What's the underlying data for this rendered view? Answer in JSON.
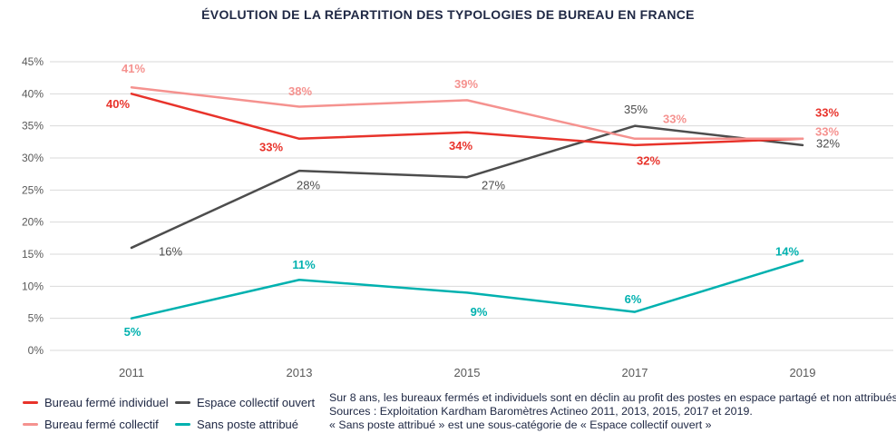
{
  "chart_data": {
    "type": "line",
    "title": "ÉVOLUTION DE LA RÉPARTTITION DES TYPOLOGIES DE BUREAU EN FRANCE",
    "categories": [
      "2011",
      "2013",
      "2015",
      "2017",
      "2019"
    ],
    "y_axis": {
      "min": 0,
      "max": 45,
      "step": 5,
      "tick_suffix": "%"
    },
    "grid": true,
    "legend_position": "bottom-left",
    "series": [
      {
        "name": "Bureau fermé individuel",
        "color": "#e8332b",
        "bold_labels": true,
        "values": [
          40,
          33,
          34,
          32,
          33
        ],
        "label_offsets": [
          [
            -15,
            11
          ],
          [
            -31,
            9
          ],
          [
            -7,
            15
          ],
          [
            15,
            17
          ],
          [
            27,
            -29
          ]
        ]
      },
      {
        "name": "Bureau fermé collectif",
        "color": "#f5928f",
        "bold_labels": true,
        "values": [
          41,
          38,
          39,
          33,
          33
        ],
        "label_offsets": [
          [
            2,
            -21
          ],
          [
            1,
            -17
          ],
          [
            -1,
            -18
          ],
          [
            44,
            -22
          ],
          [
            27,
            -8
          ]
        ]
      },
      {
        "name": "Espace collectif ouvert",
        "color": "#4d4d4d",
        "bold_labels": false,
        "values": [
          16,
          28,
          27,
          35,
          32
        ],
        "label_offsets": [
          [
            43,
            4
          ],
          [
            10,
            16
          ],
          [
            29,
            9
          ],
          [
            1,
            -18
          ],
          [
            28,
            -2
          ]
        ]
      },
      {
        "name": "Sans poste attribué",
        "color": "#00b1af",
        "bold_labels": true,
        "values": [
          5,
          11,
          9,
          6,
          14
        ],
        "label_offsets": [
          [
            1,
            15
          ],
          [
            5,
            -17
          ],
          [
            13,
            21
          ],
          [
            -2,
            -14
          ],
          [
            -17,
            -10
          ]
        ]
      }
    ],
    "draw_order": [
      2,
      0,
      1,
      3
    ]
  },
  "legend": {
    "display_order": [
      0,
      2,
      1,
      3
    ]
  },
  "footnotes": {
    "lines": [
      "Sur 8 ans, les bureaux fermés et individuels sont en déclin au profit des postes en espace partagé et non attribués",
      "Sources : Exploitation Kardham Baromètres Actineo 2011, 2013, 2015, 2017 et 2019.",
      "« Sans poste attribué » est une sous-catégorie de « Espace collectif ouvert »"
    ]
  },
  "colors": {
    "grid": "#d9d9d9",
    "axis_text": "#595959",
    "text": "#202945"
  }
}
